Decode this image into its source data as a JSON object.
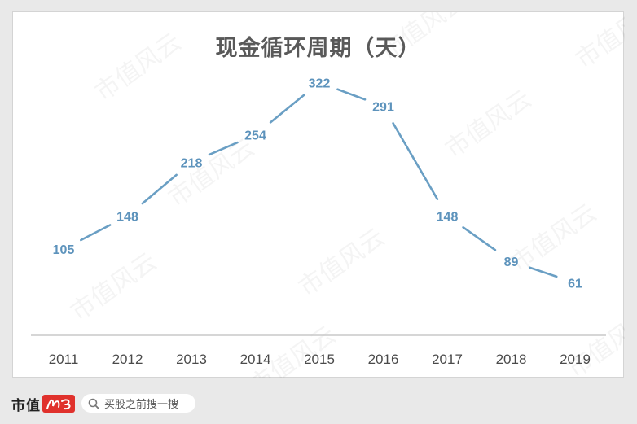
{
  "chart_data": {
    "type": "line",
    "title": "现金循环周期（天）",
    "categories": [
      "2011",
      "2012",
      "2013",
      "2014",
      "2015",
      "2016",
      "2017",
      "2018",
      "2019"
    ],
    "series": [
      {
        "values": [
          105,
          148,
          218,
          254,
          322,
          291,
          148,
          89,
          61
        ]
      }
    ],
    "xlabel": "",
    "ylabel": "",
    "ylim": [
      0,
      350
    ],
    "grid": false,
    "data_labels": true,
    "colors": {
      "line": "#6a9fc4",
      "label": "#5d93bc",
      "axis_text": "#4a4a4a",
      "axis_line": "#c8c8c8"
    }
  },
  "watermark": {
    "text": "市值风云"
  },
  "footer": {
    "logo_text": "市值",
    "search_text": "买股之前搜一搜",
    "logo_color": "#e0312c"
  }
}
